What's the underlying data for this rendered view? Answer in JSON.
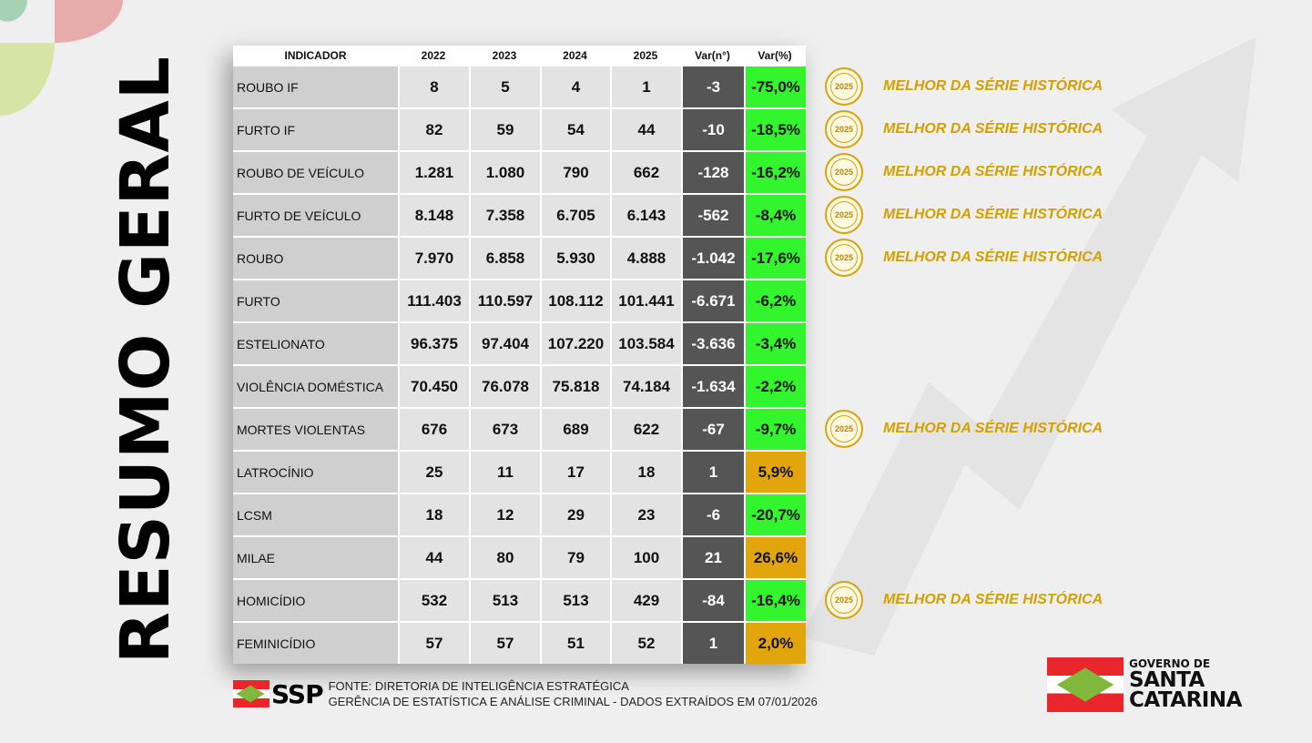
{
  "title": "RESUMO GERAL",
  "table": {
    "headers": [
      "INDICADOR",
      "2022",
      "2023",
      "2024",
      "2025",
      "Var(n°)",
      "Var(%)"
    ],
    "rows": [
      {
        "cells": [
          "ROUBO IF",
          "8",
          "5",
          "4",
          "1",
          "-3",
          "-75,0%"
        ],
        "status": "good",
        "badge": true
      },
      {
        "cells": [
          "FURTO IF",
          "82",
          "59",
          "54",
          "44",
          "-10",
          "-18,5%"
        ],
        "status": "good",
        "badge": true
      },
      {
        "cells": [
          "ROUBO DE VEÍCULO",
          "1.281",
          "1.080",
          "790",
          "662",
          "-128",
          "-16,2%"
        ],
        "status": "good",
        "badge": true
      },
      {
        "cells": [
          "FURTO DE VEÍCULO",
          "8.148",
          "7.358",
          "6.705",
          "6.143",
          "-562",
          "-8,4%"
        ],
        "status": "good",
        "badge": true
      },
      {
        "cells": [
          "ROUBO",
          "7.970",
          "6.858",
          "5.930",
          "4.888",
          "-1.042",
          "-17,6%"
        ],
        "status": "good",
        "badge": true
      },
      {
        "cells": [
          "FURTO",
          "111.403",
          "110.597",
          "108.112",
          "101.441",
          "-6.671",
          "-6,2%"
        ],
        "status": "good",
        "badge": false
      },
      {
        "cells": [
          "ESTELIONATO",
          "96.375",
          "97.404",
          "107.220",
          "103.584",
          "-3.636",
          "-3,4%"
        ],
        "status": "good",
        "badge": false
      },
      {
        "cells": [
          "VIOLÊNCIA DOMÉSTICA",
          "70.450",
          "76.078",
          "75.818",
          "74.184",
          "-1.634",
          "-2,2%"
        ],
        "status": "good",
        "badge": false
      },
      {
        "cells": [
          "MORTES VIOLENTAS",
          "676",
          "673",
          "689",
          "622",
          "-67",
          "-9,7%"
        ],
        "status": "good",
        "badge": true
      },
      {
        "cells": [
          "LATROCÍNIO",
          "25",
          "11",
          "17",
          "18",
          "1",
          "5,9%"
        ],
        "status": "bad",
        "badge": false
      },
      {
        "cells": [
          "LCSM",
          "18",
          "12",
          "29",
          "23",
          "-6",
          "-20,7%"
        ],
        "status": "good",
        "badge": false
      },
      {
        "cells": [
          "MILAE",
          "44",
          "80",
          "79",
          "100",
          "21",
          "26,6%"
        ],
        "status": "bad",
        "badge": false
      },
      {
        "cells": [
          "HOMICÍDIO",
          "532",
          "513",
          "513",
          "429",
          "-84",
          "-16,4%"
        ],
        "status": "good",
        "badge": true
      },
      {
        "cells": [
          "FEMINICÍDIO",
          "57",
          "57",
          "51",
          "52",
          "1",
          "2,0%"
        ],
        "status": "bad",
        "badge": false
      }
    ]
  },
  "badge": {
    "year": "2025",
    "text": "MELHOR DA SÉRIE HISTÓRICA"
  },
  "colors": {
    "good": "#33f52e",
    "bad": "#e2a50b",
    "badge_text": "#d4a000"
  },
  "footer": {
    "logo": "SSP",
    "line1": "FONTE: DIRETORIA DE INTELIGÊNCIA ESTRATÉGICA",
    "line2": "GERÊNCIA DE ESTATÍSTICA E ANÁLISE CRIMINAL - DADOS EXTRAÍDOS EM 07/01/2026"
  },
  "gov_logo": {
    "line1": "GOVERNO DE",
    "line2": "SANTA",
    "line3": "CATARINA"
  }
}
